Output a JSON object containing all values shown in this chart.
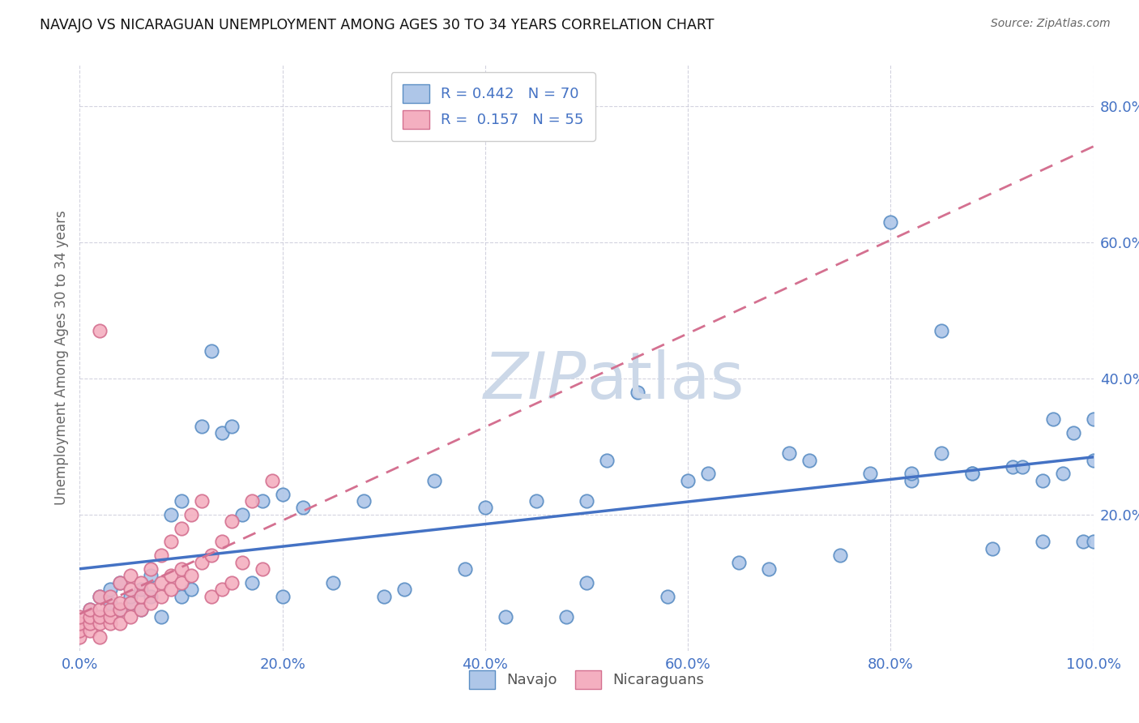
{
  "title": "NAVAJO VS NICARAGUAN UNEMPLOYMENT AMONG AGES 30 TO 34 YEARS CORRELATION CHART",
  "source": "Source: ZipAtlas.com",
  "ylabel": "Unemployment Among Ages 30 to 34 years",
  "xlim": [
    0,
    1.0
  ],
  "ylim": [
    0,
    0.86
  ],
  "xtick_labels": [
    "0.0%",
    "20.0%",
    "40.0%",
    "60.0%",
    "80.0%",
    "100.0%"
  ],
  "xtick_vals": [
    0.0,
    0.2,
    0.4,
    0.6,
    0.8,
    1.0
  ],
  "ytick_labels": [
    "20.0%",
    "40.0%",
    "60.0%",
    "80.0%"
  ],
  "ytick_vals": [
    0.2,
    0.4,
    0.6,
    0.8
  ],
  "navajo_R": 0.442,
  "navajo_N": 70,
  "nicaraguan_R": 0.157,
  "nicaraguan_N": 55,
  "navajo_color": "#aec6e8",
  "navajo_edge_color": "#5b8ec4",
  "navajo_line_color": "#4472c4",
  "nicaraguan_color": "#f4afc0",
  "nicaraguan_edge_color": "#d47090",
  "nicaraguan_line_color": "#d47090",
  "tick_color": "#4472c4",
  "grid_color": "#c8c8d8",
  "watermark_color": "#ccd8e8",
  "navajo_x": [
    0.01,
    0.02,
    0.02,
    0.03,
    0.03,
    0.04,
    0.04,
    0.05,
    0.05,
    0.06,
    0.06,
    0.07,
    0.07,
    0.08,
    0.09,
    0.1,
    0.1,
    0.11,
    0.12,
    0.13,
    0.14,
    0.15,
    0.16,
    0.17,
    0.18,
    0.2,
    0.2,
    0.22,
    0.25,
    0.28,
    0.3,
    0.32,
    0.35,
    0.38,
    0.4,
    0.42,
    0.45,
    0.48,
    0.5,
    0.52,
    0.55,
    0.58,
    0.6,
    0.62,
    0.65,
    0.68,
    0.7,
    0.72,
    0.75,
    0.78,
    0.8,
    0.82,
    0.82,
    0.85,
    0.85,
    0.88,
    0.88,
    0.9,
    0.92,
    0.93,
    0.95,
    0.95,
    0.96,
    0.97,
    0.98,
    0.99,
    1.0,
    1.0,
    1.0,
    0.5
  ],
  "navajo_y": [
    0.06,
    0.08,
    0.05,
    0.07,
    0.09,
    0.06,
    0.1,
    0.07,
    0.08,
    0.06,
    0.09,
    0.11,
    0.08,
    0.05,
    0.2,
    0.22,
    0.08,
    0.09,
    0.33,
    0.44,
    0.32,
    0.33,
    0.2,
    0.1,
    0.22,
    0.23,
    0.08,
    0.21,
    0.1,
    0.22,
    0.08,
    0.09,
    0.25,
    0.12,
    0.21,
    0.05,
    0.22,
    0.05,
    0.22,
    0.28,
    0.38,
    0.08,
    0.25,
    0.26,
    0.13,
    0.12,
    0.29,
    0.28,
    0.14,
    0.26,
    0.63,
    0.25,
    0.26,
    0.47,
    0.29,
    0.26,
    0.26,
    0.15,
    0.27,
    0.27,
    0.16,
    0.25,
    0.34,
    0.26,
    0.32,
    0.16,
    0.28,
    0.16,
    0.34,
    0.1
  ],
  "nicaraguan_x": [
    0.0,
    0.0,
    0.0,
    0.0,
    0.01,
    0.01,
    0.01,
    0.01,
    0.02,
    0.02,
    0.02,
    0.02,
    0.02,
    0.03,
    0.03,
    0.03,
    0.03,
    0.04,
    0.04,
    0.04,
    0.04,
    0.05,
    0.05,
    0.05,
    0.05,
    0.06,
    0.06,
    0.06,
    0.07,
    0.07,
    0.07,
    0.08,
    0.08,
    0.08,
    0.09,
    0.09,
    0.09,
    0.1,
    0.1,
    0.1,
    0.11,
    0.11,
    0.12,
    0.12,
    0.13,
    0.13,
    0.14,
    0.14,
    0.15,
    0.15,
    0.16,
    0.17,
    0.18,
    0.19,
    0.02
  ],
  "nicaraguan_y": [
    0.02,
    0.03,
    0.04,
    0.05,
    0.03,
    0.04,
    0.05,
    0.06,
    0.02,
    0.04,
    0.05,
    0.06,
    0.08,
    0.04,
    0.05,
    0.06,
    0.08,
    0.04,
    0.06,
    0.07,
    0.1,
    0.05,
    0.07,
    0.09,
    0.11,
    0.06,
    0.08,
    0.1,
    0.07,
    0.09,
    0.12,
    0.08,
    0.1,
    0.14,
    0.09,
    0.11,
    0.16,
    0.1,
    0.12,
    0.18,
    0.11,
    0.2,
    0.13,
    0.22,
    0.14,
    0.08,
    0.09,
    0.16,
    0.1,
    0.19,
    0.13,
    0.22,
    0.12,
    0.25,
    0.47
  ]
}
